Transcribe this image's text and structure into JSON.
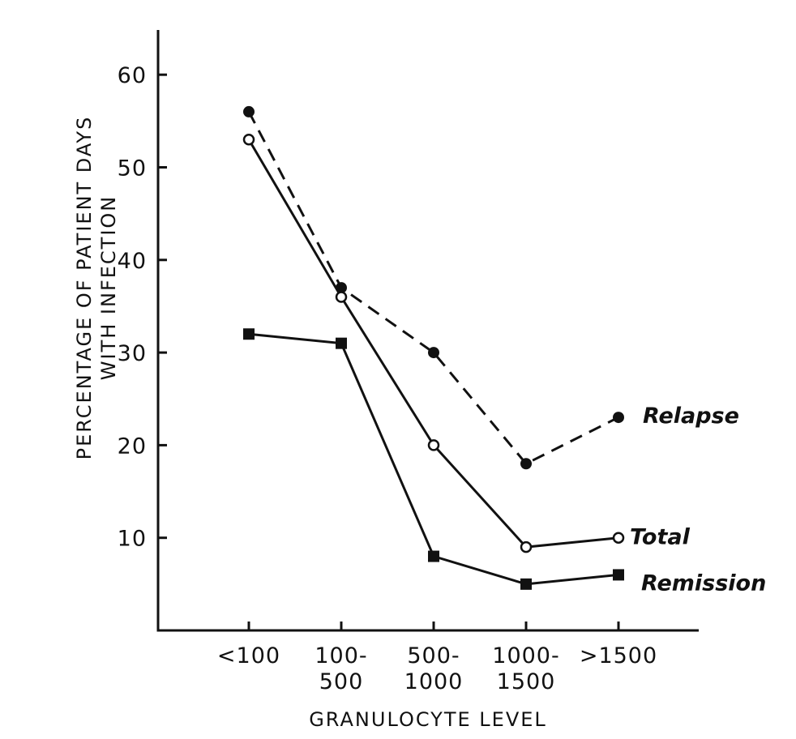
{
  "chart_data": {
    "type": "line",
    "title": "",
    "categories": [
      [
        "<100"
      ],
      [
        "100-",
        "500"
      ],
      [
        "500-",
        "1000"
      ],
      [
        "1000-",
        "1500"
      ],
      [
        ">1500"
      ]
    ],
    "xlabel": "GRANULOCYTE LEVEL",
    "ylabel": [
      "PERCENTAGE OF PATIENT DAYS",
      "WITH INFECTION"
    ],
    "ylim": [
      0,
      60
    ],
    "yticks": [
      10,
      20,
      30,
      40,
      50,
      60
    ],
    "grid": false,
    "legend": "inline-right",
    "series": [
      {
        "name": "Relapse",
        "marker": "filled-circle",
        "line": "dashed",
        "values": [
          56,
          37,
          30,
          18,
          23
        ]
      },
      {
        "name": "Total",
        "marker": "open-circle",
        "line": "solid",
        "values": [
          53,
          36,
          20,
          9,
          10
        ]
      },
      {
        "name": "Remission",
        "marker": "filled-square",
        "line": "solid",
        "values": [
          32,
          31,
          8,
          5,
          6
        ]
      }
    ]
  }
}
